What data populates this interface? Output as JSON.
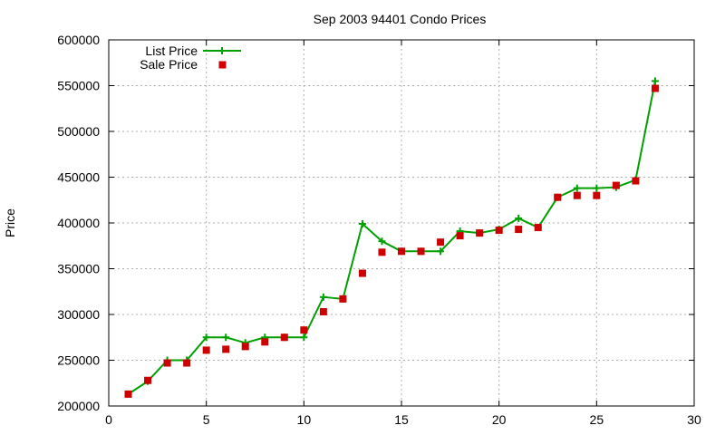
{
  "chart_data": {
    "type": "line",
    "title": "Sep 2003 94401 Condo Prices",
    "xlabel": "",
    "ylabel": "Price",
    "xlim": [
      0,
      30
    ],
    "ylim": [
      200000,
      600000
    ],
    "x_ticks": [
      0,
      5,
      10,
      15,
      20,
      25,
      30
    ],
    "y_ticks": [
      200000,
      250000,
      300000,
      350000,
      400000,
      450000,
      500000,
      550000,
      600000
    ],
    "grid": true,
    "legend_position": "top-left",
    "series": [
      {
        "name": "List Price",
        "style": "line+cross",
        "color": "#00a000",
        "x": [
          1,
          2,
          3,
          4,
          5,
          6,
          7,
          8,
          9,
          10,
          11,
          12,
          13,
          14,
          15,
          16,
          17,
          18,
          19,
          20,
          21,
          22,
          23,
          24,
          25,
          26,
          27,
          28
        ],
        "values": [
          213000,
          227000,
          250000,
          250000,
          275000,
          275000,
          269000,
          275000,
          275000,
          275000,
          319000,
          317000,
          399000,
          380000,
          369000,
          369000,
          369000,
          391000,
          389000,
          393000,
          405000,
          395000,
          428000,
          438000,
          438000,
          439000,
          447000,
          555000
        ]
      },
      {
        "name": "Sale Price",
        "style": "square",
        "color": "#cc0000",
        "x": [
          1,
          2,
          3,
          4,
          5,
          6,
          7,
          8,
          9,
          10,
          11,
          12,
          13,
          14,
          15,
          16,
          17,
          18,
          19,
          20,
          21,
          22,
          23,
          24,
          25,
          26,
          27,
          28
        ],
        "values": [
          213000,
          228000,
          247000,
          247000,
          261000,
          262000,
          265000,
          270000,
          275000,
          283000,
          303000,
          317000,
          345000,
          368000,
          369000,
          369000,
          379000,
          386000,
          389000,
          392000,
          393000,
          395000,
          428000,
          430000,
          430000,
          441000,
          446000,
          547000
        ]
      }
    ]
  }
}
